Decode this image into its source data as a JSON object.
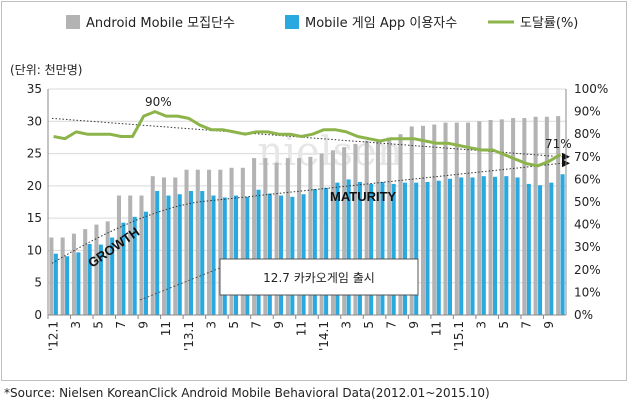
{
  "chart_data": {
    "type": "bar",
    "unit_label": "(단위: 천만명)",
    "legend": [
      {
        "name": "Android Mobile 모집단수",
        "color": "#b3b3b3",
        "kind": "bar"
      },
      {
        "name": "Mobile 게임 App 이용자수",
        "color": "#29a9e0",
        "kind": "bar"
      },
      {
        "name": "도달률(%)",
        "color": "#8db44a",
        "kind": "line"
      }
    ],
    "y_left": {
      "min": 0,
      "max": 35,
      "ticks": [
        "0",
        "5",
        "10",
        "15",
        "20",
        "25",
        "30",
        "35"
      ]
    },
    "y_right": {
      "min": 0,
      "max": 100,
      "ticks": [
        "0%",
        "10%",
        "20%",
        "30%",
        "40%",
        "50%",
        "60%",
        "70%",
        "80%",
        "90%",
        "100%"
      ]
    },
    "x_tick_labels": [
      "'12.1",
      "3",
      "5",
      "7",
      "9",
      "11",
      "'13.1",
      "3",
      "5",
      "7",
      "9",
      "11",
      "'14.1",
      "3",
      "5",
      "7",
      "9",
      "11",
      "'15.1",
      "3",
      "5",
      "7",
      "9"
    ],
    "months": 46,
    "series": [
      {
        "name": "Android Mobile 모집단수",
        "values": [
          12.0,
          12.0,
          12.6,
          13.3,
          14.0,
          14.5,
          18.5,
          18.5,
          18.5,
          21.5,
          21.3,
          21.3,
          22.5,
          22.5,
          22.5,
          22.5,
          22.8,
          22.8,
          24.3,
          24.3,
          23.6,
          24.3,
          24.3,
          24.5,
          25.0,
          25.5,
          26.0,
          26.5,
          27.0,
          27.0,
          27.5,
          28.0,
          29.2,
          29.3,
          29.5,
          29.8,
          29.8,
          29.8,
          30.0,
          30.2,
          30.3,
          30.5,
          30.5,
          30.7,
          30.7,
          30.8
        ]
      },
      {
        "name": "Mobile 게임 App 이용자수",
        "values": [
          9.5,
          9.1,
          9.7,
          11.0,
          10.9,
          12.0,
          14.3,
          15.2,
          16.0,
          19.2,
          18.5,
          18.7,
          19.2,
          19.2,
          18.5,
          18.2,
          18.5,
          18.3,
          19.4,
          18.8,
          18.5,
          18.3,
          18.7,
          19.5,
          19.7,
          20.5,
          21.0,
          20.6,
          20.3,
          20.6,
          20.3,
          20.5,
          20.5,
          20.6,
          20.8,
          21.1,
          21.3,
          21.3,
          21.5,
          21.4,
          21.5,
          21.3,
          20.3,
          20.1,
          20.5,
          21.8
        ]
      },
      {
        "name": "도달률(%)",
        "values": [
          79,
          78,
          81,
          80,
          80,
          80,
          79,
          79,
          88,
          90,
          88,
          88,
          87,
          84,
          82,
          82,
          81,
          80,
          81,
          81,
          80,
          80,
          79,
          80,
          82,
          82,
          81,
          79,
          78,
          77,
          78,
          78,
          78,
          77,
          76,
          76,
          75,
          74,
          73,
          73,
          71,
          69,
          67,
          66,
          68,
          71
        ]
      }
    ],
    "annotations": {
      "peak_label": "90%",
      "end_label": "71%",
      "event_label": "12.7 카카오게임 출시",
      "growth_label": "GROWTH",
      "maturity_label": "MATURITY"
    }
  },
  "source": "*Source: Nielsen KoreanClick Android Mobile Behavioral Data(2012.01~2015.10)",
  "watermark": "nielsen"
}
